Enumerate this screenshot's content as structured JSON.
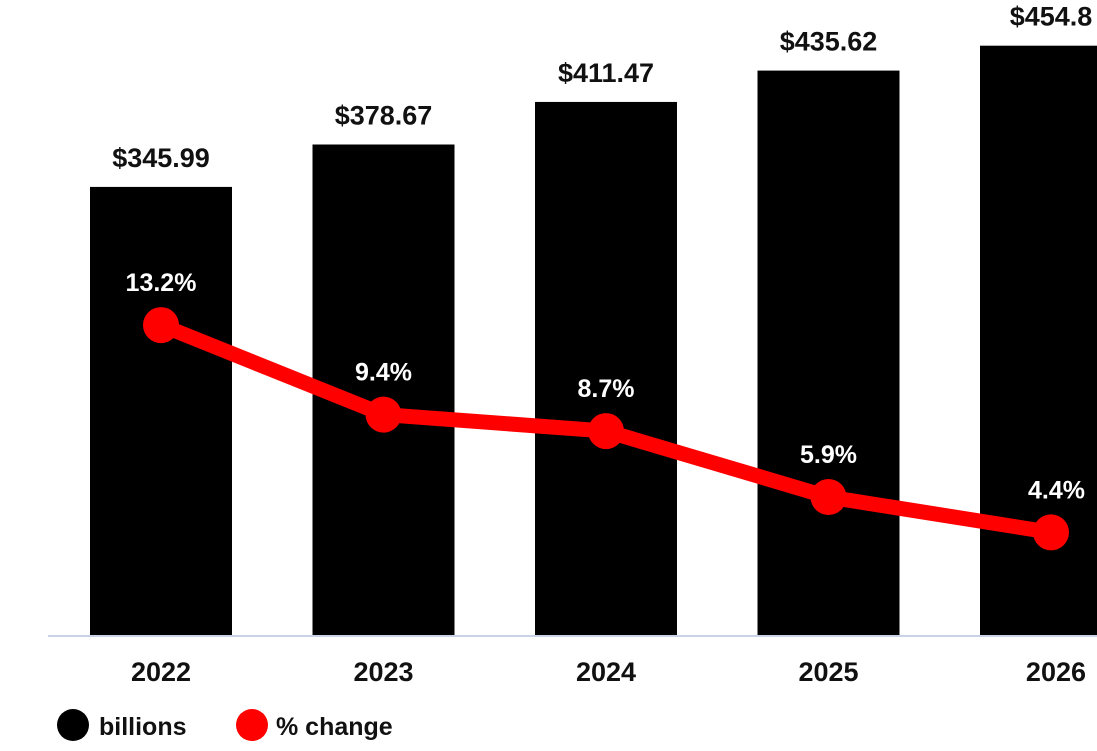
{
  "chart_data": {
    "type": "bar",
    "categories": [
      "2022",
      "2023",
      "2024",
      "2025",
      "2026"
    ],
    "series": [
      {
        "name": "billions",
        "type": "bar",
        "values": [
          345.99,
          378.67,
          411.47,
          435.62,
          454.8
        ],
        "labels": [
          "$345.99",
          "$378.67",
          "$411.47",
          "$435.62",
          "$454.8"
        ],
        "color": "#000000"
      },
      {
        "name": "% change",
        "type": "line",
        "values": [
          13.2,
          9.4,
          8.7,
          5.9,
          4.4
        ],
        "labels": [
          "13.2%",
          "9.4%",
          "8.7%",
          "5.9%",
          "4.4%"
        ],
        "color": "#ff0000"
      }
    ],
    "ylim": [
      0,
      490
    ],
    "y2lim": [
      0,
      27
    ],
    "grid": false,
    "legend_position": "bottom-left",
    "baseline_color": "#c8d2e8",
    "pct_label_color": "#ffffff"
  }
}
